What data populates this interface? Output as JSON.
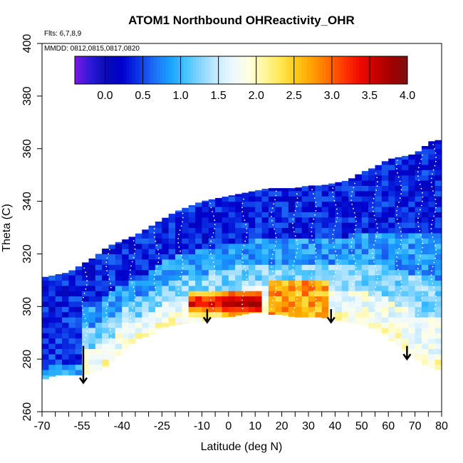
{
  "chart_data": {
    "type": "heatmap",
    "title": "ATOM1 Northbound OHReactivity_OHR",
    "flights_label": "Flts: 6,7,8,9",
    "dates_label": "MMDD: 0812,0815,0817,0820",
    "xlabel": "Latitude (deg N)",
    "ylabel": "Theta (C)",
    "xlim": [
      -70,
      80
    ],
    "ylim": [
      260,
      400
    ],
    "x_major_ticks": [
      -70,
      -55,
      -40,
      -25,
      -10,
      0,
      10,
      20,
      30,
      40,
      50,
      60,
      70,
      80
    ],
    "x_minor_ticks": [
      -65,
      -60,
      -50,
      -45,
      -35,
      -30,
      -20,
      -15,
      -5,
      5,
      15,
      25,
      35,
      45,
      55,
      65,
      75
    ],
    "y_ticks": [
      260,
      280,
      300,
      320,
      340,
      360,
      380,
      400
    ],
    "colorbar": {
      "min": -0.4,
      "max": 4.0,
      "tick_values": [
        0.0,
        0.5,
        1.0,
        1.5,
        2.0,
        2.5,
        3.0,
        3.5,
        4.0
      ],
      "tick_labels": [
        "0.0",
        "0.5",
        "1.0",
        "1.5",
        "2.0",
        "2.5",
        "3.0",
        "3.5",
        "4.0"
      ],
      "colors": [
        "#7d16e6",
        "#2b1ad8",
        "#0a0ab4",
        "#0000cd",
        "#0d34e6",
        "#1e6ef5",
        "#19a0ff",
        "#46c3ff",
        "#8cd7ff",
        "#c8ecff",
        "#eef9ff",
        "#ffffe0",
        "#fff59b",
        "#ffe650",
        "#ffc819",
        "#ffa000",
        "#ff6e00",
        "#ff3700",
        "#f00a00",
        "#c80000",
        "#a00000",
        "#7d0e12"
      ]
    },
    "arrows": [
      {
        "lat": -54.5,
        "theta_top": 285,
        "theta_bottom": 271
      },
      {
        "lat": -8,
        "theta_top": 299,
        "theta_bottom": 294
      },
      {
        "lat": 38.5,
        "theta_top": 299,
        "theta_bottom": 294
      },
      {
        "lat": 67,
        "theta_top": 285,
        "theta_bottom": 280
      }
    ],
    "envelope": {
      "lat": [
        -70,
        -65,
        -60,
        -55,
        -50,
        -45,
        -40,
        -35,
        -30,
        -25,
        -20,
        -15,
        -10,
        -5,
        0,
        5,
        10,
        15,
        20,
        25,
        30,
        35,
        40,
        45,
        50,
        55,
        60,
        65,
        70,
        75,
        78,
        80
      ],
      "theta_bottom": [
        272,
        274,
        274,
        274,
        275,
        278,
        283,
        287,
        289,
        292,
        293,
        294,
        294,
        296,
        296,
        297,
        298,
        297,
        297,
        296,
        296,
        296,
        295,
        294,
        293,
        291,
        288,
        284,
        280,
        277,
        276,
        276
      ],
      "theta_top": [
        311,
        312,
        313,
        316,
        319,
        323,
        325,
        327,
        330,
        333,
        336,
        338,
        340,
        341,
        342,
        343,
        344,
        345,
        345,
        345,
        346,
        346,
        347,
        348,
        351,
        353,
        356,
        357,
        358,
        362,
        364,
        362
      ]
    },
    "high_band": {
      "lat_min": -15,
      "lat_max": 12,
      "theta_min": 297,
      "theta_max": 306
    },
    "secondary_band": {
      "lat_min": 14,
      "lat_max": 38,
      "theta_min": 295,
      "theta_max": 309
    }
  }
}
